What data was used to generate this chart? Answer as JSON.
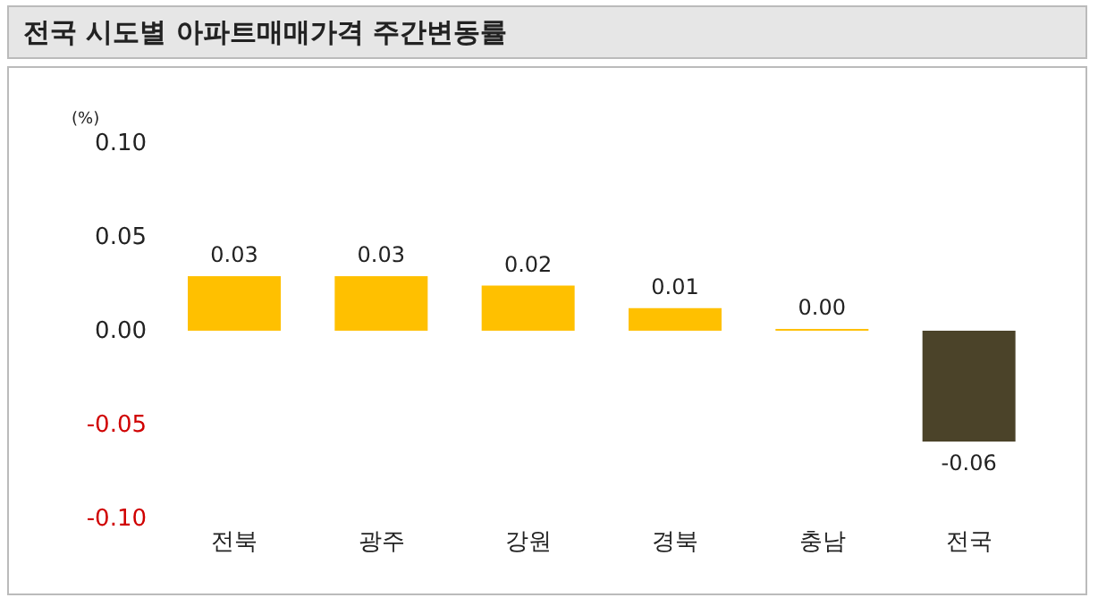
{
  "chart_data": {
    "type": "bar",
    "title": "전국 시도별 아파트매매가격 주간변동률",
    "ylabel": "(%)",
    "categories": [
      "전북",
      "광주",
      "강원",
      "경북",
      "충남",
      "전국"
    ],
    "values": [
      0.029,
      0.029,
      0.024,
      0.012,
      0.001,
      -0.059
    ],
    "value_labels": [
      "0.03",
      "0.03",
      "0.02",
      "0.01",
      "0.00",
      "-0.06"
    ],
    "colors": [
      "#ffc000",
      "#ffc000",
      "#ffc000",
      "#ffc000",
      "#ffc000",
      "#4b4329"
    ],
    "ylim": [
      -0.1,
      0.1
    ],
    "yticks": [
      {
        "value": -0.1,
        "label": "-0.10"
      },
      {
        "value": -0.05,
        "label": "-0.05"
      },
      {
        "value": 0,
        "label": "0.00"
      },
      {
        "value": 0.05,
        "label": "0.05"
      },
      {
        "value": 0.1,
        "label": "0.10"
      }
    ],
    "grid": false
  }
}
